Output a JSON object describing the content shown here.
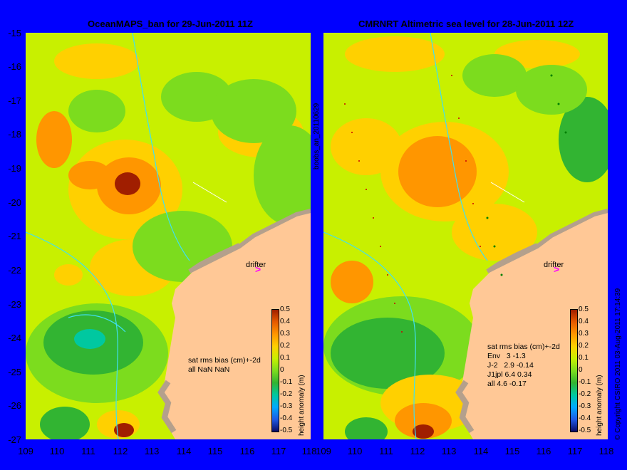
{
  "left_panel": {
    "title": "OceanMAPS_ban for 29-Jun-2011 11Z",
    "stats": "sat rms bias (cm)+-2d\nall NaN NaN",
    "drifter_label": "drifter"
  },
  "right_panel": {
    "title": "CMRNRT Altimetric sea level  for 28-Jun-2011 12Z",
    "stats": "sat rms bias (cm)+-2d\nEnv   3 -1.3\nJ-2   2.9 -0.14\nJ1jpl 6.4 0.34\nall 4.6 -0.17",
    "drifter_label": "drifter"
  },
  "side_labels": {
    "run_id": "boobs_an_20110629",
    "copyright": "© Copyright CSIRO 2011  03-Aug-2011 17:14:39"
  },
  "colorbar": {
    "title": "height anomaly (m)",
    "ticks": [
      "0.5",
      "0.4",
      "0.3",
      "0.2",
      "0.1",
      "0",
      "-0.1",
      "-0.2",
      "-0.3",
      "-0.4",
      "-0.5"
    ],
    "colors": [
      "#0a0a64",
      "#1e5ae6",
      "#00aaff",
      "#00c8a0",
      "#32b432",
      "#7cdc1e",
      "#c8f000",
      "#ffd000",
      "#ff9600",
      "#e65a00",
      "#a01e00"
    ]
  },
  "axes": {
    "y_ticks": [
      "-15",
      "-16",
      "-17",
      "-18",
      "-19",
      "-20",
      "-21",
      "-22",
      "-23",
      "-24",
      "-25",
      "-26",
      "-27"
    ],
    "x_ticks": [
      "109",
      "110",
      "111",
      "112",
      "113",
      "114",
      "115",
      "116",
      "117",
      "118"
    ]
  },
  "colors": {
    "background": "#0000ff",
    "land": "#ffc896",
    "coast": "#b4a08c",
    "contour": "#40e0f0"
  }
}
